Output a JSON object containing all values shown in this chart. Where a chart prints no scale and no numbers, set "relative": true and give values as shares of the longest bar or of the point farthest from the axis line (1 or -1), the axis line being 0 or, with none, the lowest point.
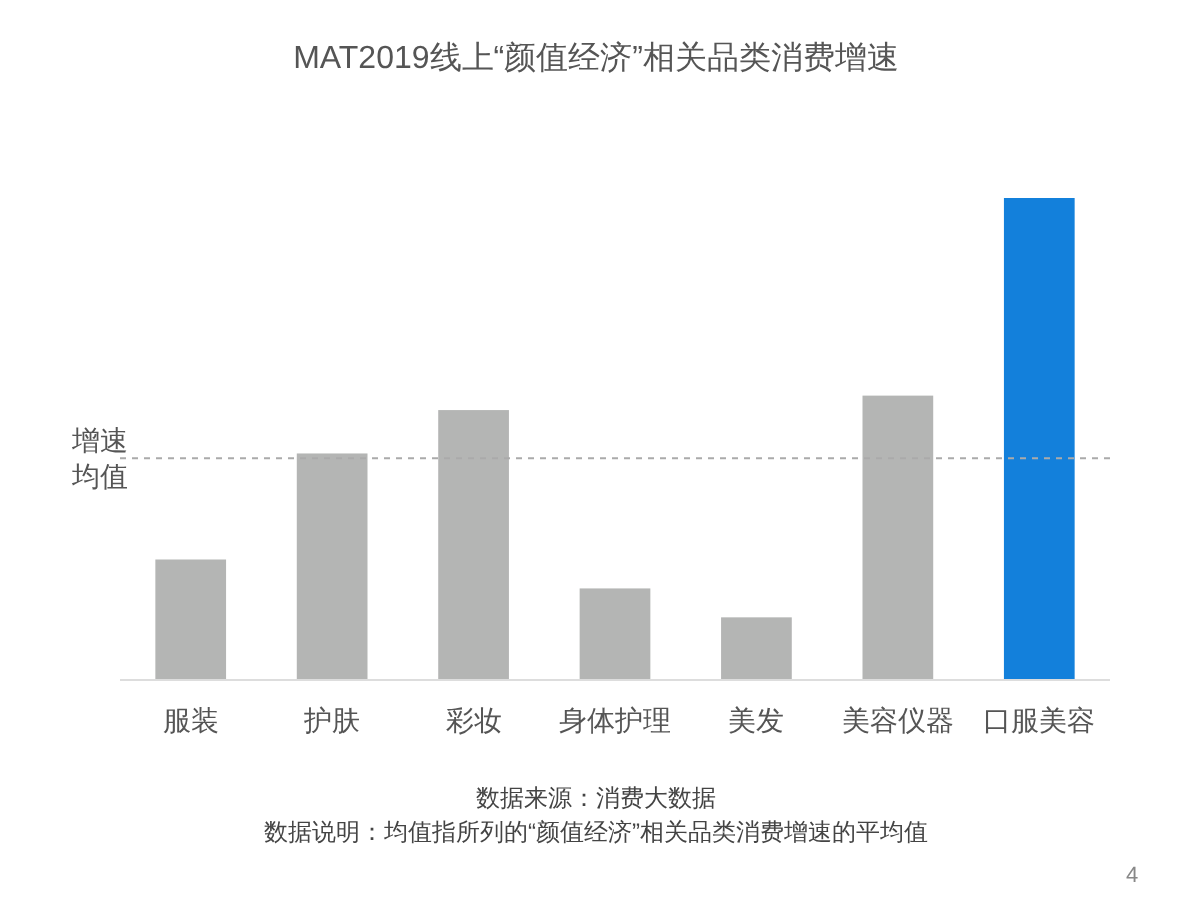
{
  "chart_data": {
    "type": "bar",
    "title": "MAT2019线上“颜值经济”相关品类消费增速",
    "relative": true,
    "categories": [
      "服装",
      "护肤",
      "彩妆",
      "身体护理",
      "美发",
      "美容仪器",
      "口服美容"
    ],
    "values": [
      0.25,
      0.47,
      0.56,
      0.19,
      0.13,
      0.59,
      1
    ],
    "colors": [
      "#b4b5b4",
      "#b4b5b4",
      "#b4b5b4",
      "#b4b5b4",
      "#b4b5b4",
      "#b4b5b4",
      "#1380db"
    ],
    "ref_lines": [
      {
        "axis": "y",
        "value": 0.46,
        "label": "增速均值",
        "color": "#aaaaaa",
        "line_style": "dashed"
      }
    ],
    "annotations": [
      "数据来源：消费大数据",
      "数据说明：均值指所列的“颜值经济”相关品类消费增速的平均值",
      "4"
    ]
  }
}
